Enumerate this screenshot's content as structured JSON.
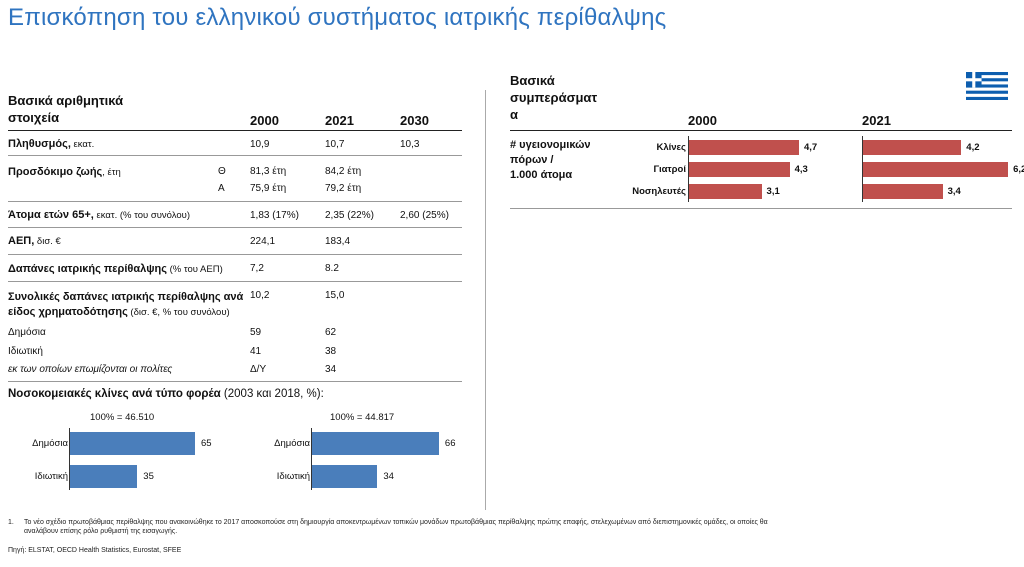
{
  "title": "Επισκόπηση του ελληνικού συστήματος ιατρικής περίθαλψης",
  "left": {
    "header": {
      "line1": "Βασικά αριθμητικά",
      "line2": "στοιχεία",
      "cols": [
        "2000",
        "2021",
        "2030"
      ]
    },
    "rows": {
      "population": {
        "label": "Πληθυσμός,",
        "sub": " εκατ.",
        "v2000": "10,9",
        "v2021": "10,7",
        "v2030": "10,3"
      },
      "life": {
        "label": "Προσδόκιμο ζωής",
        "sub": ", έτη",
        "male_mark": "Θ",
        "female_mark": "Α",
        "m2000": "81,3 έτη",
        "m2021": "84,2 έτη",
        "f2000": "75,9 έτη",
        "f2021": "79,2 έτη"
      },
      "elderly": {
        "label": "Άτομα ετών 65+,",
        "sub": " εκατ. (% του συνόλου)",
        "v2000": "1,83 (17%)",
        "v2021": "2,35 (22%)",
        "v2030": "2,60 (25%)"
      },
      "gdp": {
        "label": "ΑΕΠ,",
        "sub": " δισ. €",
        "v2000": "224,1",
        "v2021": "183,4"
      },
      "spend": {
        "label": "Δαπάνες ιατρικής περίθαλψης",
        "sub": " (% του ΑΕΠ)",
        "v2000": "7,2",
        "v2021": "8.2"
      },
      "total": {
        "line1": "Συνολικές δαπάνες ιατρικής περίθαλψης ανά",
        "line2": "είδος χρηματοδότησης",
        "sub": " (δισ. €, % του συνόλου)",
        "v2000": "10,2",
        "v2021": "15,0"
      },
      "public": {
        "label": "Δημόσια",
        "v2000": "59",
        "v2021": "62"
      },
      "private": {
        "label": "Ιδιωτική",
        "v2000": "41",
        "v2021": "38"
      },
      "insured": {
        "label": "εκ των οποίων επωμίζονται οι πολίτες",
        "v2000": "Δ/Υ",
        "v2021": "34"
      }
    },
    "beds": {
      "title": "Νοσοκομειακές κλίνες ανά τύπο φορέα",
      "title_sub": " (2003 και 2018, %):",
      "charts": [
        {
          "total": "100% = 46.510",
          "items": [
            {
              "label": "Δημόσια",
              "value": 65
            },
            {
              "label": "Ιδιωτική",
              "value": 35
            }
          ]
        },
        {
          "total": "100% = 44.817",
          "items": [
            {
              "label": "Δημόσια",
              "value": 66
            },
            {
              "label": "Ιδιωτική",
              "value": 34
            }
          ]
        }
      ]
    }
  },
  "right": {
    "header": {
      "line1": "Βασικά",
      "line2": "συμπεράσματ",
      "line3": "α",
      "col1": "2000",
      "col2": "2021"
    },
    "metric": {
      "line1": "# υγειονομικών",
      "line2": "πόρων /",
      "line3": "1.000 άτομα"
    },
    "flag": "greek-flag"
  },
  "chart_data": {
    "type": "bar",
    "categories": [
      "Κλίνες",
      "Γιατροί",
      "Νοσηλευτές"
    ],
    "series": [
      {
        "name": "2000",
        "values": [
          4.7,
          4.3,
          3.1
        ],
        "labels": [
          "4,7",
          "4,3",
          "3,1"
        ]
      },
      {
        "name": "2021",
        "values": [
          4.2,
          6.2,
          3.4
        ],
        "labels": [
          "4,2",
          "6,2",
          "3,4"
        ]
      }
    ],
    "bar_color": "#c0504d"
  },
  "footnote": {
    "num": "1.",
    "line1": "Το νέο σχέδιο πρωτοβάθμιας περίθαλψης που ανακοινώθηκε το 2017 αποσκοπούσε στη δημιουργία αποκεντρωμένων τοπικών μονάδων πρωτοβάθμιας περίθαλψης πρώτης επαφής, στελεχωμένων από διεπιστημονικές ομάδες, οι οποίες θα",
    "line2": "αναλάβουν επίσης ρόλο ρυθμιστή της εισαγωγής.",
    "source": "Πηγή: ELSTAT, OECD Health Statistics, Eurostat, SFEE"
  },
  "colors": {
    "title": "#2f74c0",
    "blue_bar": "#4a7ebb",
    "red_bar": "#c0504d"
  }
}
